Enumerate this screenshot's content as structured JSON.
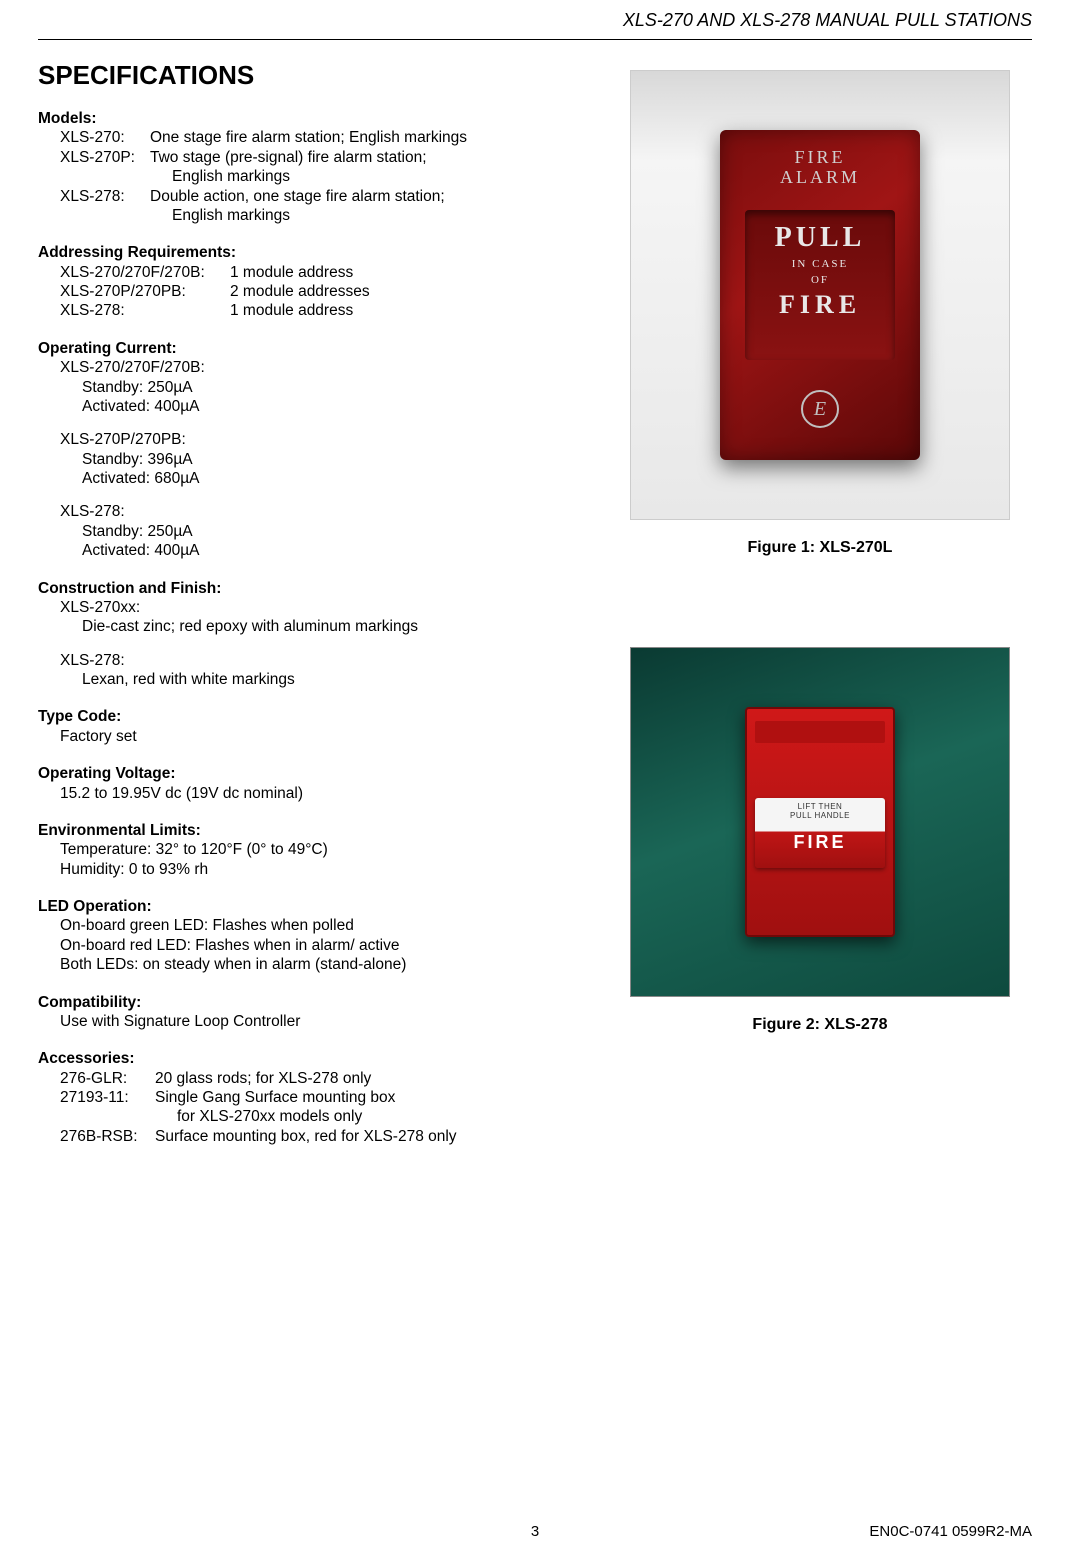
{
  "header": {
    "title": "XLS-270 AND XLS-278 MANUAL PULL STATIONS"
  },
  "section_title": "SPECIFICATIONS",
  "models": {
    "heading": "Models:",
    "items": [
      {
        "label": "XLS-270:",
        "desc": "One stage fire alarm station; English markings"
      },
      {
        "label": "XLS-270P:",
        "desc": "Two stage (pre-signal) fire alarm station;",
        "cont": "English markings"
      },
      {
        "label": "XLS-278:",
        "desc": "Double action, one stage fire alarm station;",
        "cont": "English markings"
      }
    ]
  },
  "addressing": {
    "heading": "Addressing Requirements:",
    "items": [
      {
        "label": "XLS-270/270F/270B:",
        "desc": "1 module address"
      },
      {
        "label": "XLS-270P/270PB:",
        "desc": "2 module addresses"
      },
      {
        "label": "XLS-278:",
        "desc": "1 module address"
      }
    ]
  },
  "current": {
    "heading": "Operating Current:",
    "groups": [
      {
        "label": "XLS-270/270F/270B:",
        "standby": "Standby: 250µA",
        "activated": "Activated: 400µA"
      },
      {
        "label": "XLS-270P/270PB:",
        "standby": "Standby: 396µA",
        "activated": "Activated: 680µA"
      },
      {
        "label": "XLS-278:",
        "standby": "Standby: 250µA",
        "activated": "Activated: 400µA"
      }
    ]
  },
  "construction": {
    "heading": "Construction and Finish:",
    "groups": [
      {
        "label": "XLS-270xx:",
        "desc": "Die-cast zinc; red epoxy with aluminum markings"
      },
      {
        "label": "XLS-278:",
        "desc": "Lexan, red with white markings"
      }
    ]
  },
  "typecode": {
    "heading": "Type Code:",
    "desc": "Factory set"
  },
  "voltage": {
    "heading": "Operating Voltage:",
    "desc": "15.2 to 19.95V dc (19V dc nominal)"
  },
  "env": {
    "heading": "Environmental Limits:",
    "temp": "Temperature: 32° to 120°F (0° to 49°C)",
    "hum": "Humidity: 0 to 93% rh"
  },
  "led": {
    "heading": "LED Operation:",
    "l1": "On-board green LED: Flashes when polled",
    "l2": "On-board red LED: Flashes when in alarm/ active",
    "l3": "Both LEDs: on steady when in alarm (stand-alone)"
  },
  "compat": {
    "heading": "Compatibility:",
    "desc": "Use with Signature Loop Controller"
  },
  "accessories": {
    "heading": "Accessories:",
    "items": [
      {
        "label": "276-GLR:",
        "desc": "20 glass rods; for XLS-278 only"
      },
      {
        "label": "27193-11:",
        "desc": "Single Gang Surface mounting box",
        "cont": "for XLS-270xx models only"
      },
      {
        "label": "276B-RSB:",
        "desc": "Surface mounting box, red for XLS-278 only"
      }
    ]
  },
  "figures": {
    "fig1": {
      "caption": "Figure 1: XLS-270L",
      "top1": "FIRE",
      "top2": "ALARM",
      "pull": "PULL",
      "incase": "IN CASE",
      "of": "OF",
      "fire": "FIRE",
      "logo": "E"
    },
    "fig2": {
      "caption": "Figure 2: XLS-278",
      "lift": "LIFT THEN",
      "pullh": "PULL HANDLE",
      "fire": "FIRE"
    }
  },
  "footer": {
    "page": "3",
    "doc": "EN0C-0741 0599R2-MA"
  }
}
